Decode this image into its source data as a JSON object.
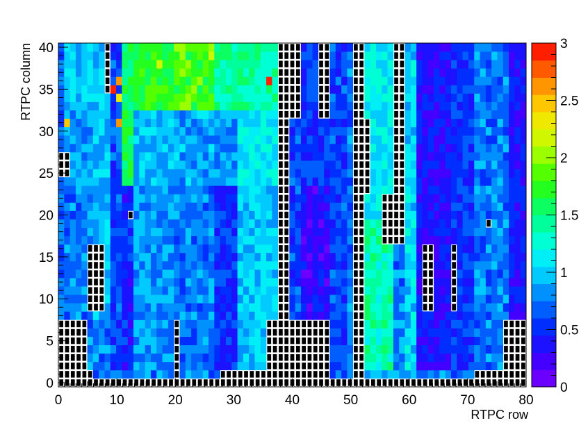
{
  "chart_data": {
    "type": "heatmap",
    "title": "",
    "xlabel": "RTPC row",
    "ylabel": "RTPC column",
    "xlim": [
      0,
      80
    ],
    "ylim": [
      0,
      41
    ],
    "zlim": [
      0,
      3
    ],
    "x_ticks": [
      "0",
      "10",
      "20",
      "30",
      "40",
      "50",
      "60",
      "70",
      "80"
    ],
    "y_ticks": [
      "0",
      "5",
      "10",
      "15",
      "20",
      "25",
      "30",
      "35",
      "40"
    ],
    "z_ticks": [
      "0",
      "0.5",
      "1",
      "1.5",
      "2",
      "2.5",
      "3"
    ],
    "grid": false,
    "colorbar": "right",
    "dead_pad_marker": "black square with white border",
    "row_bands": [
      {
        "x": [
          0,
          1
        ],
        "y_range": [
          2,
          40
        ],
        "value": 0.7
      },
      {
        "x": [
          1,
          6
        ],
        "y_range": [
          8,
          24
        ],
        "value": 0.75
      },
      {
        "x": [
          1,
          6
        ],
        "y_range": [
          24,
          33
        ],
        "value": 0.85
      },
      {
        "x": [
          1,
          6
        ],
        "y_range": [
          33,
          40
        ],
        "value": 1.0
      },
      {
        "x": [
          6,
          9
        ],
        "y_range": [
          8,
          40
        ],
        "value": 0.95
      },
      {
        "x": [
          9,
          11
        ],
        "y_range": [
          2,
          40
        ],
        "value": 0.6
      },
      {
        "x": [
          11,
          13
        ],
        "y_range": [
          2,
          24
        ],
        "value": 0.45
      },
      {
        "x": [
          11,
          13
        ],
        "y_range": [
          24,
          40
        ],
        "value": 1.6
      },
      {
        "x": [
          13,
          20
        ],
        "y_range": [
          2,
          24
        ],
        "value": 0.85
      },
      {
        "x": [
          13,
          20
        ],
        "y_range": [
          24,
          33
        ],
        "value": 0.95
      },
      {
        "x": [
          13,
          20
        ],
        "y_range": [
          33,
          40
        ],
        "value": 1.7
      },
      {
        "x": [
          20,
          27
        ],
        "y_range": [
          2,
          24
        ],
        "value": 0.75
      },
      {
        "x": [
          20,
          27
        ],
        "y_range": [
          24,
          33
        ],
        "value": 0.9
      },
      {
        "x": [
          20,
          27
        ],
        "y_range": [
          33,
          40
        ],
        "value": 1.8
      },
      {
        "x": [
          27,
          31
        ],
        "y_range": [
          2,
          24
        ],
        "value": 0.5
      },
      {
        "x": [
          27,
          31
        ],
        "y_range": [
          24,
          33
        ],
        "value": 0.85
      },
      {
        "x": [
          27,
          31
        ],
        "y_range": [
          33,
          40
        ],
        "value": 1.4
      },
      {
        "x": [
          31,
          38
        ],
        "y_range": [
          2,
          24
        ],
        "value": 1.0
      },
      {
        "x": [
          31,
          38
        ],
        "y_range": [
          24,
          33
        ],
        "value": 1.1
      },
      {
        "x": [
          31,
          38
        ],
        "y_range": [
          33,
          40
        ],
        "value": 1.4
      },
      {
        "x": [
          38,
          40
        ],
        "y_range": [
          2,
          40
        ],
        "value": 0.4
      },
      {
        "x": [
          40,
          42
        ],
        "y_range": [
          2,
          40
        ],
        "value": 0.6
      },
      {
        "x": [
          42,
          47
        ],
        "y_range": [
          2,
          24
        ],
        "value": 0.3
      },
      {
        "x": [
          42,
          47
        ],
        "y_range": [
          24,
          40
        ],
        "value": 0.55
      },
      {
        "x": [
          47,
          50
        ],
        "y_range": [
          2,
          40
        ],
        "value": 0.6
      },
      {
        "x": [
          50,
          52
        ],
        "y_range": [
          2,
          40
        ],
        "value": 0.75
      },
      {
        "x": [
          52,
          58
        ],
        "y_range": [
          2,
          20
        ],
        "value": 1.35
      },
      {
        "x": [
          52,
          58
        ],
        "y_range": [
          20,
          40
        ],
        "value": 1.1
      },
      {
        "x": [
          58,
          60
        ],
        "y_range": [
          2,
          40
        ],
        "value": 0.75
      },
      {
        "x": [
          60,
          62
        ],
        "y_range": [
          2,
          40
        ],
        "value": 1.05
      },
      {
        "x": [
          62,
          68
        ],
        "y_range": [
          2,
          40
        ],
        "value": 0.35
      },
      {
        "x": [
          68,
          72
        ],
        "y_range": [
          2,
          40
        ],
        "value": 0.55
      },
      {
        "x": [
          72,
          78
        ],
        "y_range": [
          2,
          40
        ],
        "value": 0.75
      },
      {
        "x": [
          78,
          80
        ],
        "y_range": [
          2,
          40
        ],
        "value": 0.4
      }
    ],
    "hot_spots": [
      {
        "x": 9,
        "y": 35,
        "value": 2.9
      },
      {
        "x": 10,
        "y": 36,
        "value": 2.6
      },
      {
        "x": 10,
        "y": 34,
        "value": 2.4
      },
      {
        "x": 10,
        "y": 31,
        "value": 2.6
      },
      {
        "x": 1,
        "y": 31,
        "value": 2.5
      },
      {
        "x": 36,
        "y": 36,
        "value": 2.9
      },
      {
        "x": 26,
        "y": 39,
        "value": 2.2
      },
      {
        "x": 17,
        "y": 38,
        "value": 2.2
      }
    ],
    "dead_regions": [
      {
        "x": [
          0,
          80
        ],
        "y": [
          0,
          0
        ]
      },
      {
        "x": [
          0,
          2
        ],
        "y": [
          0,
          7
        ]
      },
      {
        "x": [
          2,
          4
        ],
        "y": [
          1,
          7
        ]
      },
      {
        "x": [
          3,
          5
        ],
        "y": [
          1,
          1
        ]
      },
      {
        "x": [
          77,
          80
        ],
        "y": [
          1,
          7
        ]
      },
      {
        "x": [
          72,
          76
        ],
        "y": [
          1,
          1
        ]
      },
      {
        "x": [
          36,
          46
        ],
        "y": [
          1,
          7
        ]
      },
      {
        "x": [
          28,
          35
        ],
        "y": [
          1,
          1
        ]
      },
      {
        "x": [
          20,
          20
        ],
        "y": [
          1,
          7
        ]
      },
      {
        "x": [
          38,
          39
        ],
        "y": [
          8,
          40
        ]
      },
      {
        "x": [
          51,
          52
        ],
        "y": [
          1,
          40
        ]
      },
      {
        "x": [
          58,
          59
        ],
        "y": [
          17,
          40
        ]
      },
      {
        "x": [
          0,
          1
        ],
        "y": [
          25,
          27
        ]
      },
      {
        "x": [
          8,
          8
        ],
        "y": [
          35,
          40
        ]
      },
      {
        "x": [
          5,
          7
        ],
        "y": [
          9,
          16
        ]
      },
      {
        "x": [
          68,
          68
        ],
        "y": [
          9,
          16
        ]
      },
      {
        "x": [
          63,
          64
        ],
        "y": [
          9,
          16
        ]
      },
      {
        "x": [
          12,
          12
        ],
        "y": [
          20,
          20
        ]
      },
      {
        "x": [
          74,
          74
        ],
        "y": [
          19,
          19
        ]
      },
      {
        "x": [
          56,
          57
        ],
        "y": [
          17,
          22
        ]
      },
      {
        "x": [
          52,
          53
        ],
        "y": [
          23,
          31
        ]
      },
      {
        "x": [
          45,
          46
        ],
        "y": [
          32,
          40
        ]
      },
      {
        "x": [
          40,
          41
        ],
        "y": [
          32,
          40
        ]
      }
    ]
  }
}
